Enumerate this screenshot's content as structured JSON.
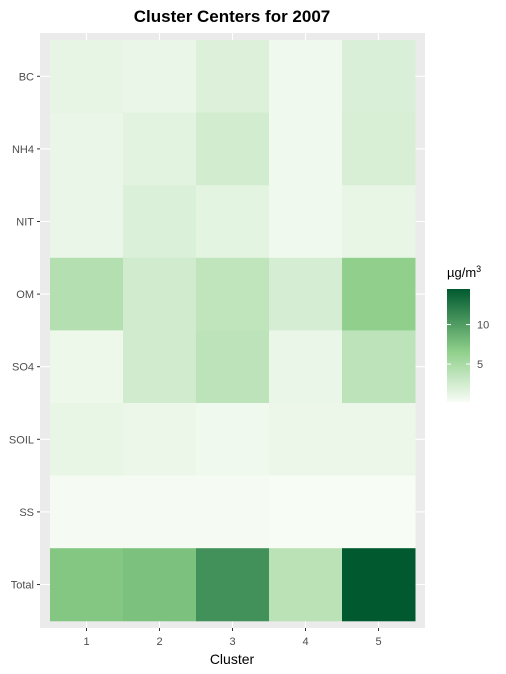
{
  "chart_data": {
    "type": "heatmap",
    "title": "Cluster Centers for 2007",
    "xlabel": "Cluster",
    "ylabel": "",
    "x": [
      "1",
      "2",
      "3",
      "4",
      "5"
    ],
    "y": [
      "BC",
      "NH4",
      "NIT",
      "OM",
      "SO4",
      "SOIL",
      "SS",
      "Total"
    ],
    "values": [
      [
        1.2,
        1.0,
        1.8,
        0.6,
        2.0
      ],
      [
        1.0,
        1.5,
        2.5,
        0.6,
        2.1
      ],
      [
        1.0,
        1.9,
        1.4,
        0.6,
        1.1
      ],
      [
        4.3,
        2.6,
        3.6,
        2.3,
        6.5
      ],
      [
        0.8,
        2.6,
        3.8,
        1.0,
        3.8
      ],
      [
        1.1,
        0.9,
        0.6,
        0.9,
        0.9
      ],
      [
        0.3,
        0.3,
        0.3,
        0.2,
        0.2
      ],
      [
        7.2,
        7.6,
        10.8,
        3.9,
        14.5
      ]
    ],
    "colorbar": {
      "title_base": "µg/m",
      "title_sup": "3",
      "ticks": [
        5,
        10
      ],
      "min": 0.2,
      "max": 14.5
    },
    "palette": {
      "low": "#f7fcf5",
      "high": "#00592f"
    },
    "panel_background": "#ebebeb",
    "grid": true,
    "legend_position": "right"
  }
}
